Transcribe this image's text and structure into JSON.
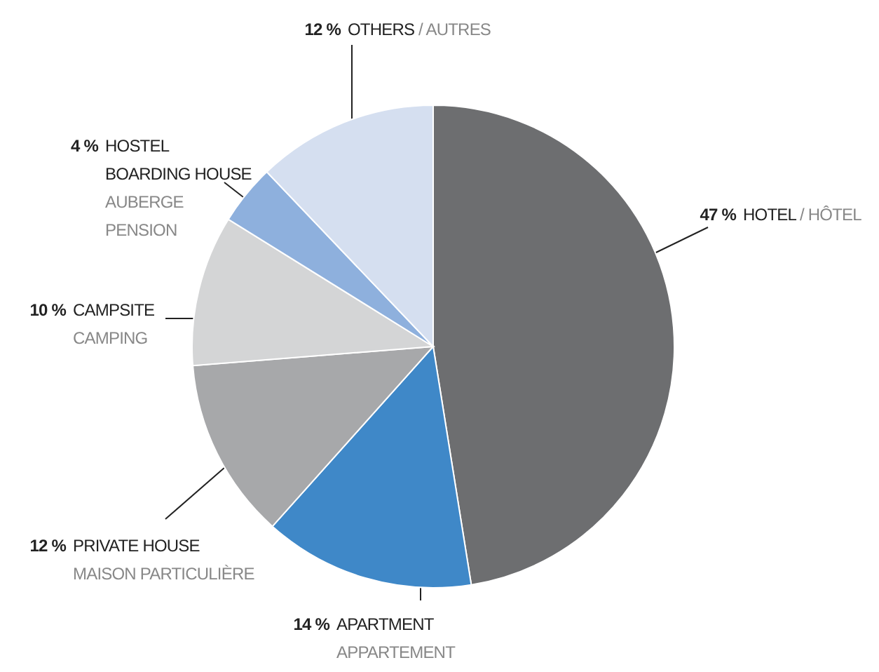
{
  "chart_data": {
    "type": "pie",
    "categories": [
      "HOTEL",
      "APARTMENT",
      "PRIVATE HOUSE",
      "CAMPSITE",
      "HOSTEL\nBOARDING HOUSE",
      "OTHERS"
    ],
    "values": [
      47,
      14,
      12,
      10,
      4,
      12
    ],
    "value_labels": [
      "47 %",
      "14 %",
      "12 %",
      "10 %",
      "4 %",
      "12 %"
    ],
    "colors": [
      "#6d6e70",
      "#3f88c8",
      "#a7a8aa",
      "#d4d5d6",
      "#8eb0dd",
      "#d5dff0"
    ],
    "annotations": [
      "/ HÔTEL",
      "APPARTEMENT",
      "MAISON PARTICULIÈRE",
      "CAMPING",
      "AUBERGE\nPENSION",
      "/ AUTRES"
    ],
    "legend": false
  }
}
